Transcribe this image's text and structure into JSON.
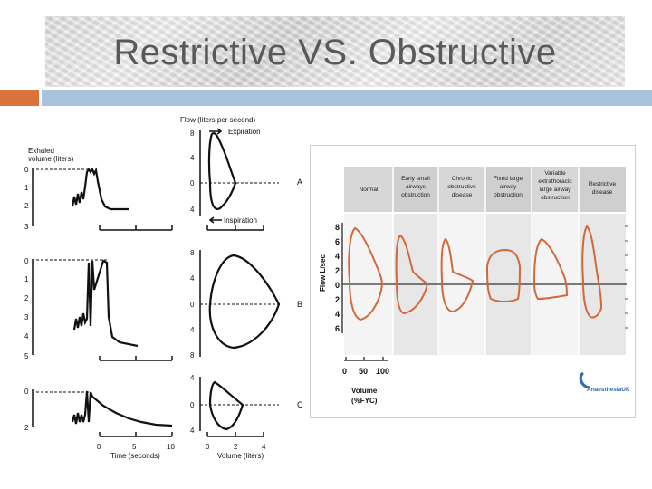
{
  "slide": {
    "title": "Restrictive VS. Obstructive"
  },
  "left_figure": {
    "exhaled_label_line1": "Exhaled",
    "exhaled_label_line2": "volume (liters)",
    "flow_label": "Flow (liters per second)",
    "expiration_label": "Expiration",
    "inspiration_label": "Inspiration",
    "time_label": "Time (seconds)",
    "volume_label": "Volume (liters)",
    "row_labels": [
      "A",
      "B",
      "C"
    ],
    "row_a_vol_ticks": [
      "0",
      "1",
      "2",
      "3"
    ],
    "row_b_vol_ticks": [
      "0",
      "1",
      "2",
      "3",
      "4",
      "5"
    ],
    "row_c_vol_ticks": [
      "0",
      "2"
    ],
    "row_a_flow_ticks": [
      "8",
      "4",
      "0",
      "4"
    ],
    "row_b_flow_ticks": [
      "8",
      "4",
      "0",
      "4",
      "8"
    ],
    "row_c_flow_ticks": [
      "4",
      "0",
      "4"
    ],
    "time_ticks": [
      "0",
      "5",
      "10"
    ],
    "volume_ticks": [
      "0",
      "2",
      "4"
    ]
  },
  "right_figure": {
    "columns": [
      {
        "lines": [
          "Normal"
        ]
      },
      {
        "lines": [
          "Early small",
          "airways",
          "obstruction"
        ]
      },
      {
        "lines": [
          "Chronic",
          "obstructive",
          "disease"
        ]
      },
      {
        "lines": [
          "Fixed large",
          "airway",
          "obstruction"
        ]
      },
      {
        "lines": [
          "Variable",
          "extrathoracic",
          "large airway",
          "obstruction"
        ]
      },
      {
        "lines": [
          "Restrictive",
          "disease"
        ]
      }
    ],
    "flow_axis_label": "Flow L/sec",
    "flow_ticks": [
      "8",
      "6",
      "4",
      "2",
      "0",
      "2",
      "4",
      "6"
    ],
    "volume_ticks": [
      "0",
      "50",
      "100"
    ],
    "volume_label_line1": "Volume",
    "volume_label_line2": "(%FYC)",
    "logo_text": "AnaesthesiaUK",
    "loop_color": "#d2693a"
  }
}
